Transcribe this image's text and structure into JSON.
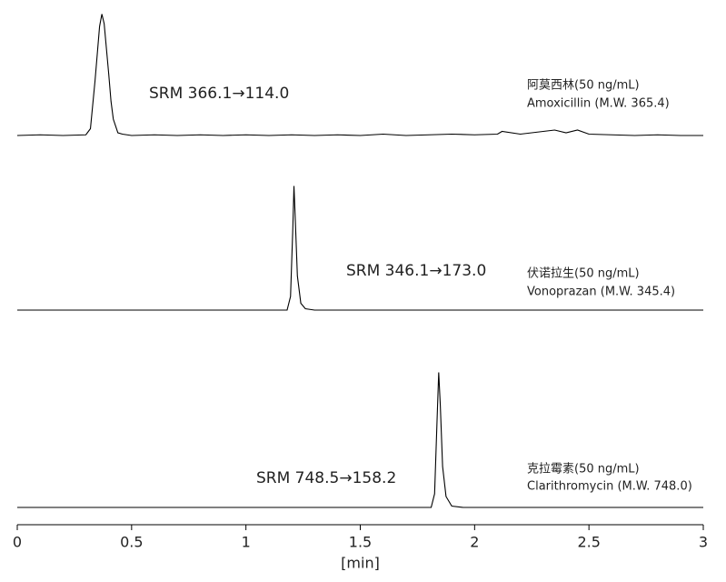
{
  "chart_data": [
    {
      "type": "line",
      "color": "#000000",
      "xlim": [
        0,
        3
      ],
      "ylim": [
        0,
        100
      ],
      "annotations": [
        "SRM 366.1→114.0",
        "阿莫西林(50 ng/mL)",
        "Amoxicillin (M.W. 365.4)"
      ],
      "x": [
        0,
        0.1,
        0.2,
        0.3,
        0.32,
        0.34,
        0.36,
        0.37,
        0.38,
        0.4,
        0.41,
        0.42,
        0.44,
        0.46,
        0.5,
        0.6,
        0.7,
        0.8,
        0.9,
        1.0,
        1.1,
        1.2,
        1.3,
        1.4,
        1.5,
        1.6,
        1.7,
        1.8,
        1.9,
        2.0,
        2.1,
        2.12,
        2.2,
        2.3,
        2.35,
        2.4,
        2.45,
        2.5,
        2.6,
        2.7,
        2.8,
        2.9,
        3.0
      ],
      "values": [
        0,
        0.5,
        0,
        0.5,
        5,
        40,
        80,
        89,
        82,
        45,
        25,
        12,
        2,
        1,
        0,
        0.5,
        0,
        0.5,
        0,
        0.5,
        0,
        0.5,
        0,
        0.5,
        0,
        1,
        0,
        0.5,
        1,
        0.5,
        1,
        3,
        1,
        3,
        4,
        2,
        4,
        1,
        0.5,
        0,
        0.5,
        0,
        0
      ]
    },
    {
      "type": "line",
      "color": "#000000",
      "xlim": [
        0,
        3
      ],
      "ylim": [
        0,
        100
      ],
      "annotations": [
        "SRM 346.1→173.0",
        "伏诺拉生(50 ng/mL)",
        "Vonoprazan (M.W. 345.4)"
      ],
      "x": [
        0,
        1.18,
        1.195,
        1.205,
        1.21,
        1.215,
        1.225,
        1.24,
        1.26,
        1.3,
        3
      ],
      "values": [
        0,
        0,
        10,
        60,
        91,
        70,
        25,
        5,
        1,
        0,
        0
      ]
    },
    {
      "type": "line",
      "color": "#000000",
      "xlim": [
        0,
        3
      ],
      "ylim": [
        0,
        100
      ],
      "annotations": [
        "SRM 748.5→158.2",
        "克拉霉素(50 ng/mL)",
        "Clarithromycin (M.W. 748.0)"
      ],
      "x": [
        0,
        1.81,
        1.825,
        1.835,
        1.843,
        1.85,
        1.86,
        1.875,
        1.9,
        1.95,
        3
      ],
      "values": [
        0,
        0,
        10,
        60,
        99,
        75,
        30,
        8,
        1,
        0,
        0
      ],
      "xticks": [
        0,
        0.5,
        1,
        1.5,
        2,
        2.5,
        3
      ],
      "xlabel": "[min]"
    }
  ]
}
